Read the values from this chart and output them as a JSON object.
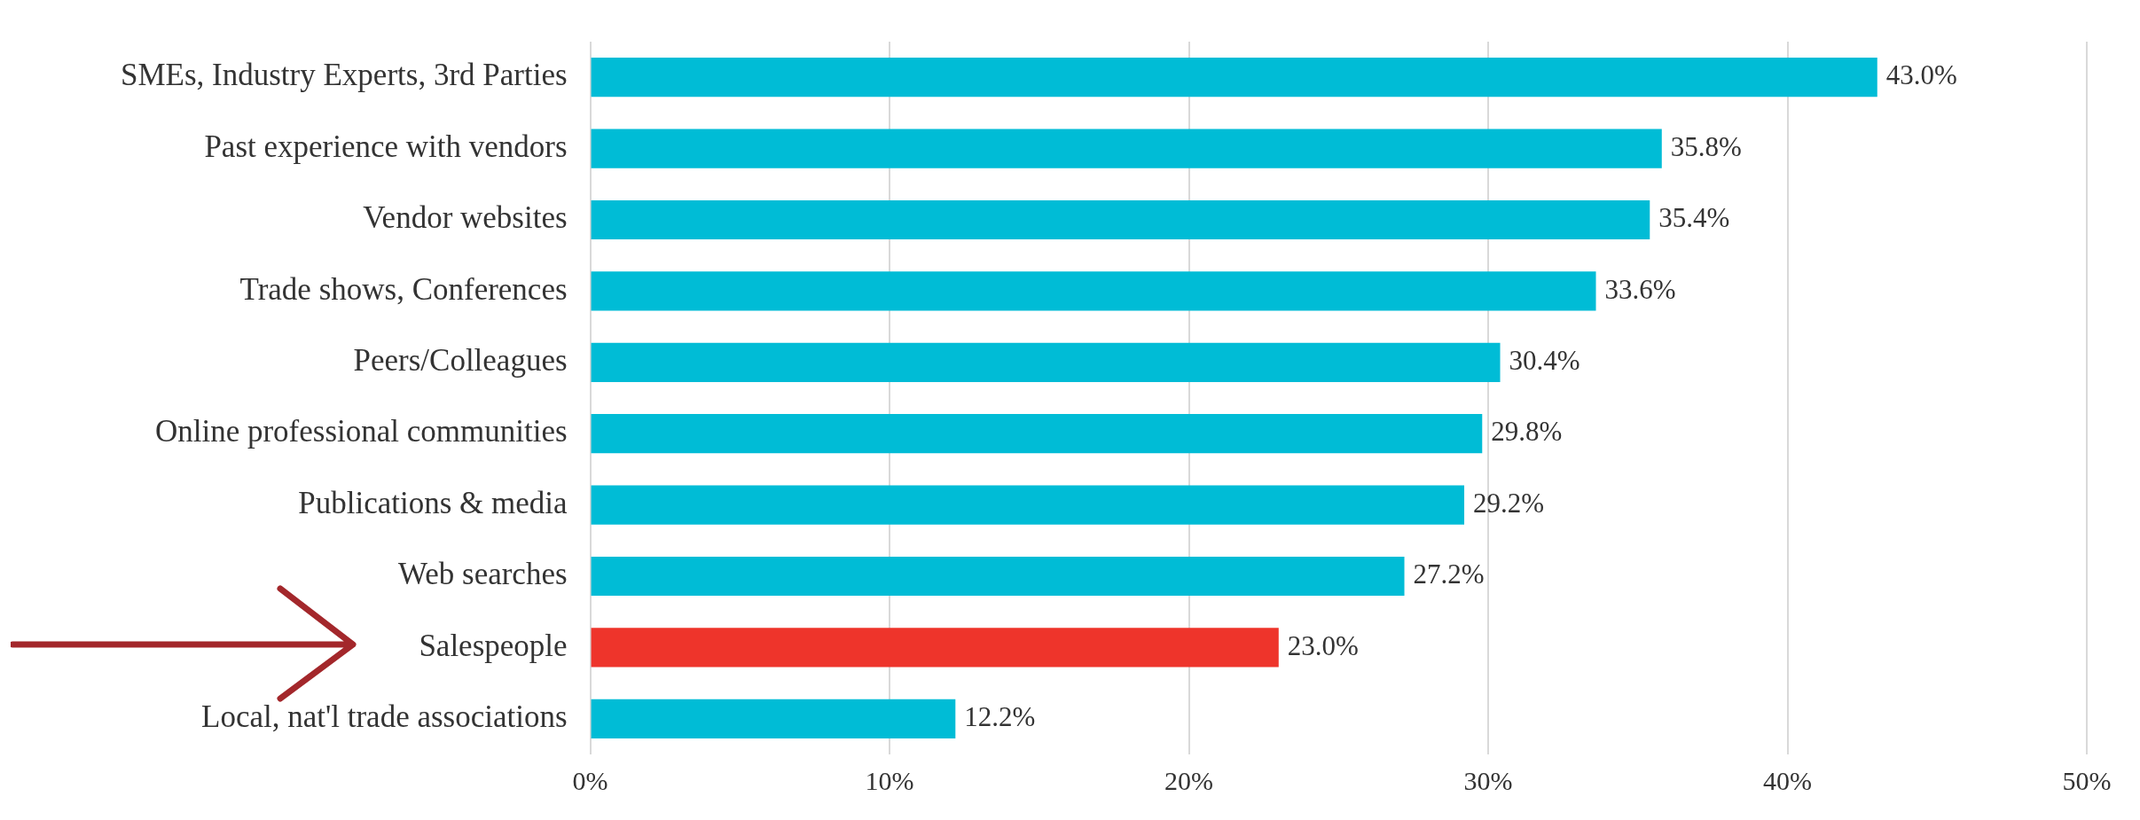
{
  "chart_data": {
    "type": "bar",
    "orientation": "horizontal",
    "categories": [
      "SMEs, Industry Experts, 3rd Parties",
      "Past experience with vendors",
      "Vendor websites",
      "Trade shows, Conferences",
      "Peers/Colleagues",
      "Online professional communities",
      "Publications & media",
      "Web searches",
      "Salespeople",
      "Local, nat'l trade associations"
    ],
    "values": [
      43.0,
      35.8,
      35.4,
      33.6,
      30.4,
      29.8,
      29.2,
      27.2,
      23.0,
      12.2
    ],
    "value_labels": [
      "43.0%",
      "35.8%",
      "35.4%",
      "33.6%",
      "30.4%",
      "29.8%",
      "29.2%",
      "27.2%",
      "23.0%",
      "12.2%"
    ],
    "colors": [
      "#00bcd6",
      "#00bcd6",
      "#00bcd6",
      "#00bcd6",
      "#00bcd6",
      "#00bcd6",
      "#00bcd6",
      "#00bcd6",
      "#ee342b",
      "#00bcd6"
    ],
    "xlim": [
      0,
      50
    ],
    "xticks": [
      {
        "value": 0,
        "label": "0%"
      },
      {
        "value": 10,
        "label": "10%"
      },
      {
        "value": 20,
        "label": "20%"
      },
      {
        "value": 30,
        "label": "30%"
      },
      {
        "value": 40,
        "label": "40%"
      },
      {
        "value": 50,
        "label": "50%"
      }
    ],
    "grid": "x",
    "legend": false
  }
}
